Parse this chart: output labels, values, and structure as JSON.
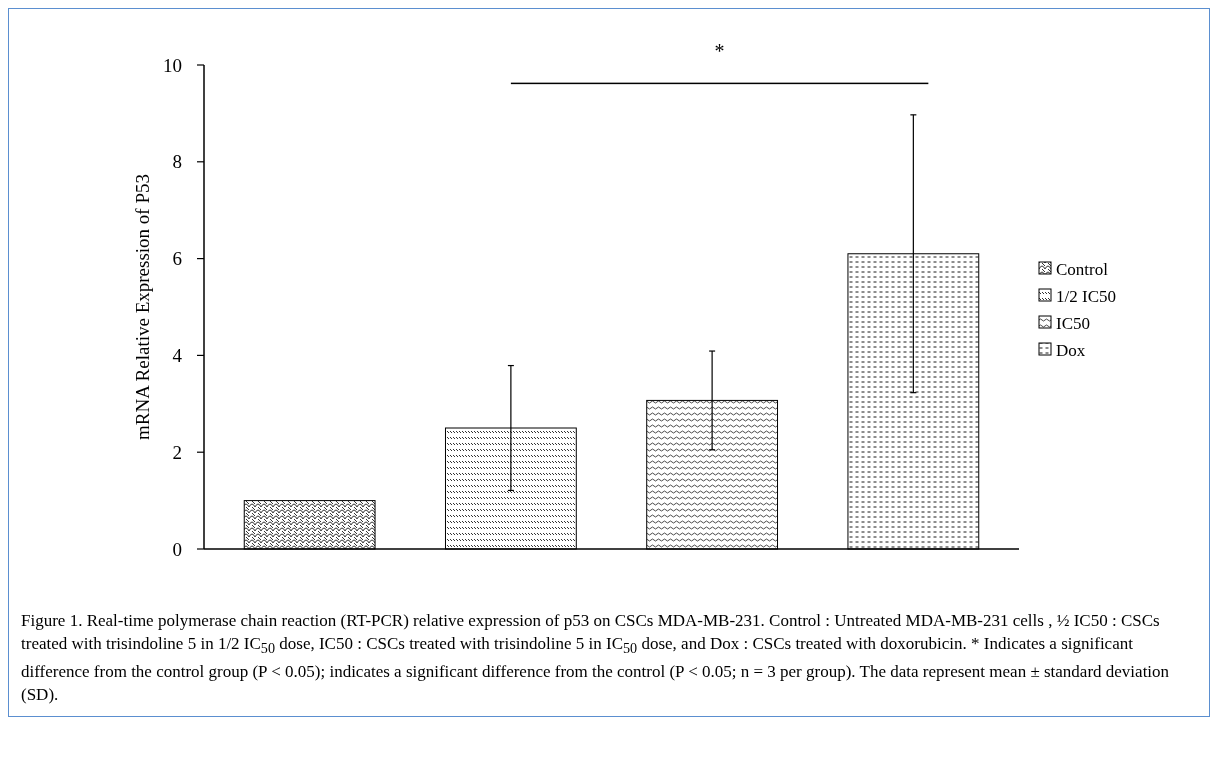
{
  "chart_data": {
    "type": "bar",
    "ylabel": "mRNA Relative Expression of P53",
    "categories": [
      null,
      null,
      null,
      null
    ],
    "series": [
      {
        "name": "Control",
        "color": "#000000",
        "values": [
          1.0,
          null,
          null,
          null
        ],
        "errors": [
          null,
          null,
          null,
          null
        ]
      },
      {
        "name": "1/2 IC50",
        "color": "#000000",
        "values": [
          null,
          2.5,
          null,
          null
        ],
        "errors": [
          null,
          1.29,
          null,
          null
        ]
      },
      {
        "name": "IC50",
        "color": "#000000",
        "values": [
          null,
          null,
          3.07,
          null
        ],
        "errors": [
          null,
          null,
          1.02,
          null
        ]
      },
      {
        "name": "Dox",
        "color": "#000000",
        "values": [
          null,
          null,
          null,
          6.1
        ],
        "errors": [
          null,
          null,
          null,
          2.87
        ]
      }
    ],
    "ylim": [
      0,
      10
    ],
    "yticks": [
      0,
      2,
      4,
      6,
      8,
      10
    ],
    "grid": false,
    "legend": "right",
    "annotations": [
      "*",
      "Figure 1. Real-time polymerase chain reaction (RT-PCR) relative expression of p53 on CSCs MDA-MB-231. Control : Untreated MDA-MB-231 cells , ½ IC50 : CSCs treated with trisindoline 5 in 1/2 IC$_{50}$ dose, IC50 : CSCs treated with trisindoline 5 in IC$_{50}$ dose, and Dox : CSCs treated with doxorubicin. * Indicates a significant difference from the control group (P < 0.05); indicates a significant difference from the control (P < 0.05; n = 3 per group). The data represent mean ± standard deviation (SD)."
    ]
  }
}
